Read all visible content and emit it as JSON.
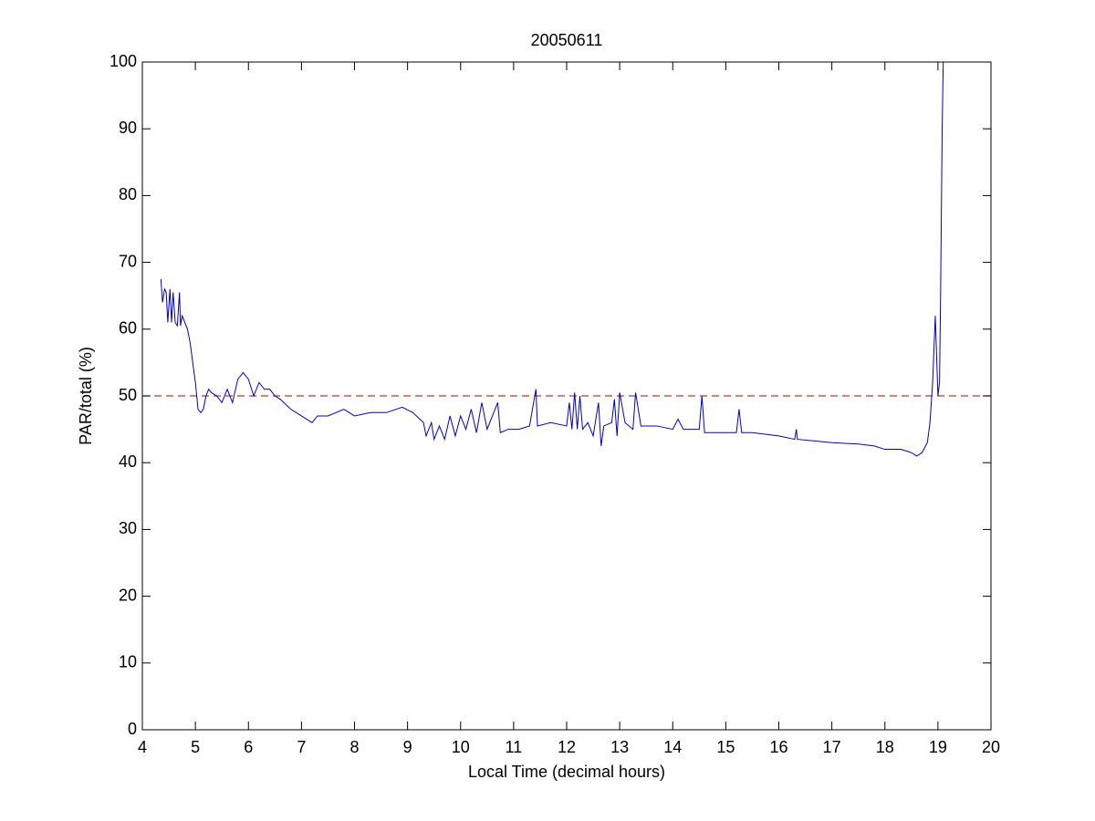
{
  "chart_data": {
    "type": "line",
    "title": "20050611",
    "xlabel": "Local Time (decimal hours)",
    "ylabel": "PAR/total (%)",
    "xlim": [
      4,
      20
    ],
    "ylim": [
      0,
      100
    ],
    "xticks": [
      4,
      5,
      6,
      7,
      8,
      9,
      10,
      11,
      12,
      13,
      14,
      15,
      16,
      17,
      18,
      19,
      20
    ],
    "yticks": [
      0,
      10,
      20,
      30,
      40,
      50,
      60,
      70,
      80,
      90,
      100
    ],
    "reference_lines": [
      {
        "value": 50,
        "color": "#c0392b",
        "dashed": true
      }
    ],
    "series": [
      {
        "color": "#0000cc",
        "x": [
          4.35,
          4.38,
          4.42,
          4.45,
          4.48,
          4.52,
          4.55,
          4.58,
          4.62,
          4.66,
          4.7,
          4.72,
          4.75,
          4.8,
          4.85,
          4.9,
          4.95,
          5.0,
          5.05,
          5.1,
          5.15,
          5.2,
          5.25,
          5.3,
          5.4,
          5.5,
          5.6,
          5.7,
          5.8,
          5.9,
          6.0,
          6.1,
          6.2,
          6.3,
          6.4,
          6.5,
          6.6,
          6.8,
          7.0,
          7.2,
          7.3,
          7.5,
          7.8,
          8.0,
          8.3,
          8.6,
          8.9,
          9.1,
          9.3,
          9.35,
          9.45,
          9.5,
          9.6,
          9.7,
          9.8,
          9.9,
          10.0,
          10.1,
          10.2,
          10.3,
          10.4,
          10.5,
          10.6,
          10.7,
          10.75,
          10.9,
          11.1,
          11.3,
          11.42,
          11.45,
          11.7,
          12.0,
          12.05,
          12.1,
          12.15,
          12.2,
          12.25,
          12.3,
          12.4,
          12.5,
          12.6,
          12.65,
          12.7,
          12.85,
          12.9,
          12.95,
          13.0,
          13.1,
          13.25,
          13.3,
          13.4,
          13.7,
          14.0,
          14.1,
          14.2,
          14.5,
          14.55,
          14.6,
          15.0,
          15.2,
          15.25,
          15.3,
          15.5,
          16.0,
          16.3,
          16.33,
          16.35,
          17.0,
          17.5,
          17.8,
          18.0,
          18.3,
          18.5,
          18.6,
          18.7,
          18.8,
          18.85,
          18.9,
          18.95,
          19.0,
          19.03,
          19.05,
          19.08,
          19.1
        ],
        "values": [
          67.5,
          64,
          66,
          65.5,
          61,
          66,
          61,
          65.5,
          61,
          60.5,
          65.5,
          60.5,
          62,
          61,
          60,
          58,
          55,
          52,
          48,
          47.5,
          48,
          50,
          51,
          50.5,
          50,
          49,
          51,
          49,
          52.5,
          53.5,
          52.5,
          50,
          52,
          51,
          51,
          50,
          49.5,
          48,
          47,
          46,
          47,
          47,
          48,
          47,
          47.5,
          47.5,
          48.3,
          47.5,
          46,
          44,
          46,
          43.5,
          45.5,
          43.5,
          47,
          44,
          47,
          45,
          48,
          44.5,
          49,
          45,
          47,
          49,
          44.5,
          45,
          45,
          45.5,
          51,
          45.5,
          46,
          45.5,
          49,
          45,
          50.5,
          45,
          50,
          45,
          46,
          44,
          49,
          42.5,
          45.5,
          46,
          49.5,
          44,
          50.5,
          46,
          45,
          50.5,
          45.5,
          45.5,
          45,
          46.5,
          45,
          45,
          50,
          44.5,
          44.5,
          44.5,
          48,
          44.5,
          44.5,
          44,
          43.5,
          45,
          43.5,
          43,
          42.8,
          42.5,
          42,
          42,
          41.5,
          41,
          41.5,
          43,
          46,
          52,
          62,
          50,
          52,
          65,
          90,
          100
        ]
      }
    ]
  }
}
